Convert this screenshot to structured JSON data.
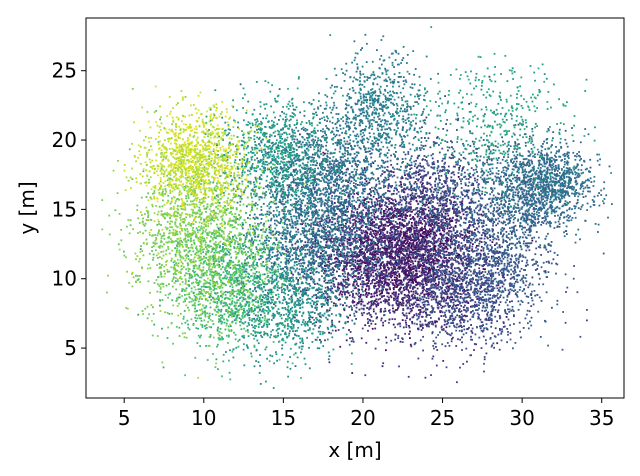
{
  "chart_data": {
    "type": "scatter",
    "title": "",
    "xlabel": "x [m]",
    "ylabel": "y [m]",
    "xlim": [
      2.6,
      36.4
    ],
    "ylim": [
      1.4,
      28.8
    ],
    "xticks": [
      5,
      10,
      15,
      20,
      25,
      30,
      35
    ],
    "yticks": [
      5,
      10,
      15,
      20,
      25
    ],
    "grid": false,
    "legend": "none",
    "colormap": "viridis",
    "color_value_range": [
      0,
      1
    ],
    "clusters": [
      {
        "x": 22.8,
        "y": 12.0,
        "sx": 2.2,
        "sy": 2.2,
        "n": 2000,
        "c": 0.03
      },
      {
        "x": 20.0,
        "y": 11.5,
        "sx": 2.0,
        "sy": 2.5,
        "n": 1300,
        "c": 0.12
      },
      {
        "x": 25.5,
        "y": 9.0,
        "sx": 2.0,
        "sy": 2.2,
        "n": 1000,
        "c": 0.2
      },
      {
        "x": 24.5,
        "y": 16.0,
        "sx": 1.8,
        "sy": 2.0,
        "n": 900,
        "c": 0.22
      },
      {
        "x": 28.0,
        "y": 11.0,
        "sx": 2.0,
        "sy": 2.4,
        "n": 1000,
        "c": 0.28
      },
      {
        "x": 30.5,
        "y": 16.5,
        "sx": 1.8,
        "sy": 1.8,
        "n": 1100,
        "c": 0.33
      },
      {
        "x": 32.0,
        "y": 17.0,
        "sx": 1.2,
        "sy": 1.2,
        "n": 400,
        "c": 0.38
      },
      {
        "x": 17.5,
        "y": 17.0,
        "sx": 2.2,
        "sy": 2.2,
        "n": 1400,
        "c": 0.36
      },
      {
        "x": 16.5,
        "y": 12.0,
        "sx": 2.2,
        "sy": 2.5,
        "n": 1200,
        "c": 0.38
      },
      {
        "x": 21.0,
        "y": 22.0,
        "sx": 1.5,
        "sy": 2.0,
        "n": 700,
        "c": 0.42
      },
      {
        "x": 15.0,
        "y": 8.0,
        "sx": 1.8,
        "sy": 2.0,
        "n": 700,
        "c": 0.52
      },
      {
        "x": 14.5,
        "y": 19.0,
        "sx": 1.8,
        "sy": 2.0,
        "n": 800,
        "c": 0.55
      },
      {
        "x": 28.0,
        "y": 21.0,
        "sx": 2.5,
        "sy": 2.5,
        "n": 450,
        "c": 0.58
      },
      {
        "x": 11.5,
        "y": 9.5,
        "sx": 1.8,
        "sy": 2.2,
        "n": 900,
        "c": 0.68
      },
      {
        "x": 9.5,
        "y": 13.0,
        "sx": 2.0,
        "sy": 3.0,
        "n": 1500,
        "c": 0.8
      },
      {
        "x": 9.5,
        "y": 18.5,
        "sx": 1.6,
        "sy": 1.8,
        "n": 1100,
        "c": 0.92
      }
    ]
  }
}
